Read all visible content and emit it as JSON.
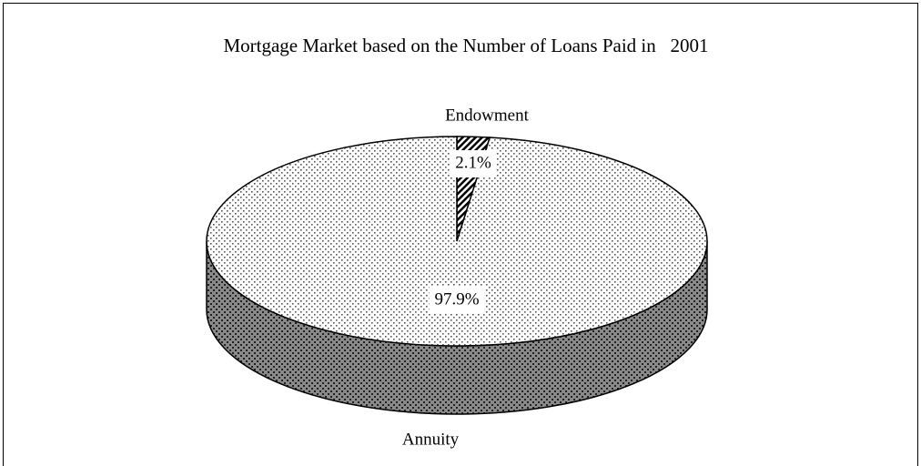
{
  "chart_data": {
    "type": "pie",
    "title": "Mortgage Market based on the Number of Loans Paid in   2001",
    "categories": [
      "Endowment",
      "Annuity"
    ],
    "values": [
      2.1,
      97.9
    ],
    "value_labels": [
      "2.1%",
      "97.9%"
    ]
  }
}
